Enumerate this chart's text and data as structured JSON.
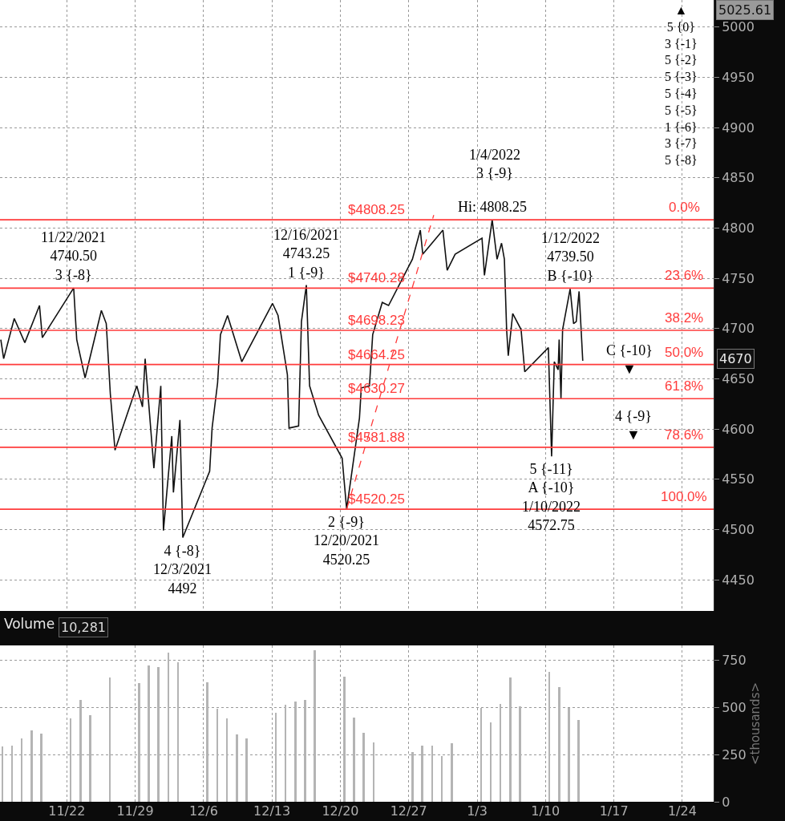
{
  "chart_data": [
    {
      "type": "line",
      "xlim": [
        "2021-11-15T04:00",
        "2022-01-27T05:00"
      ],
      "ylim": [
        4419,
        5027
      ],
      "xticks": [
        {
          "value": "2021-11-22",
          "label": null
        },
        {
          "value": "2021-11-29",
          "label": null
        },
        {
          "value": "2021-12-06",
          "label": null
        },
        {
          "value": "2021-12-13",
          "label": null
        },
        {
          "value": "2021-12-20",
          "label": null
        },
        {
          "value": "2021-12-27",
          "label": null
        },
        {
          "value": "2022-01-03",
          "label": null
        },
        {
          "value": "2022-01-10",
          "label": null
        },
        {
          "value": "2022-01-17",
          "label": null
        },
        {
          "value": "2022-01-24",
          "label": null
        }
      ],
      "yticks": [
        4450,
        4500,
        4550,
        4600,
        4650,
        4700,
        4750,
        4800,
        4850,
        4900,
        4950,
        5000
      ],
      "tick_labels": "y",
      "grid": true,
      "series": [
        {
          "color": "#111111",
          "line_style": "solid",
          "x": [
            "2021-11-15T06:00",
            "2021-11-15T13:00",
            "2021-11-16T15:00",
            "2021-11-17T17:00",
            "2021-11-19T05:00",
            "2021-11-19T12:00",
            "2021-11-22T17:00",
            "2021-11-23T00:30",
            "2021-11-23T21:00",
            "2021-11-25T13:00",
            "2021-11-26T01:00",
            "2021-11-26T11:00",
            "2021-11-26T22:30",
            "2021-11-29T04:00",
            "2021-11-29T18:00",
            "2021-11-30T00:30",
            "2021-11-30T22:00",
            "2021-12-01T15:00",
            "2021-12-01T21:30",
            "2021-12-02T18:00",
            "2021-12-02T22:00",
            "2021-12-03T14:00",
            "2021-12-03T21:00",
            "2021-12-06T15:00",
            "2021-12-06T21:00",
            "2021-12-07T10:30",
            "2021-12-07T17:30",
            "2021-12-08T11:00",
            "2021-12-09T22:00",
            "2021-12-13T01:30",
            "2021-12-13T15:00",
            "2021-12-14T14:00",
            "2021-12-14T18:00",
            "2021-12-15T17:30",
            "2021-12-16T00:30",
            "2021-12-16T12:30",
            "2021-12-16T20:30",
            "2021-12-17T18:30",
            "2021-12-20T04:30",
            "2021-12-20T15:30",
            "2021-12-21T23:00",
            "2021-12-22T03:30",
            "2021-12-22T23:30",
            "2021-12-23T07:30",
            "2021-12-24T07:00",
            "2021-12-24T22:30",
            "2021-12-27T09:00",
            "2021-12-28T04:30",
            "2021-12-28T10:30",
            "2021-12-30T12:00",
            "2021-12-30T22:30",
            "2021-12-31T18:00",
            "2022-01-03T12:00",
            "2022-01-03T18:00",
            "2022-01-04T13:00",
            "2022-01-05T01:00",
            "2022-01-05T12:00",
            "2022-01-05T19:00",
            "2022-01-06T00:30",
            "2022-01-06T04:30",
            "2022-01-06T15:30",
            "2022-01-07T12:00",
            "2022-01-07T21:00",
            "2022-01-10T07:00",
            "2022-01-10T15:00",
            "2022-01-10T21:30",
            "2022-01-11T07:00",
            "2022-01-11T09:30",
            "2022-01-11T14:00",
            "2022-01-11T18:00",
            "2022-01-12T12:30",
            "2022-01-12T21:00",
            "2022-01-13T03:30",
            "2022-01-13T10:30",
            "2022-01-13T15:30",
            "2022-01-13T19:30"
          ],
          "values": [
            4689,
            4670,
            4710,
            4686,
            4723,
            4691,
            4740.5,
            4689,
            4651,
            4718,
            4705,
            4635,
            4579,
            4643,
            4622,
            4670,
            4561,
            4643,
            4499,
            4593,
            4537,
            4609,
            4492,
            4558,
            4601,
            4646,
            4694,
            4713,
            4667,
            4725,
            4713,
            4654,
            4601,
            4603,
            4707,
            4743.25,
            4643,
            4614,
            4571,
            4520.25,
            4611,
            4641,
            4643,
            4694,
            4726,
            4723,
            4769,
            4798,
            4774,
            4798,
            4758,
            4774,
            4790,
            4753,
            4808.25,
            4769,
            4785,
            4769,
            4699,
            4673,
            4715,
            4699,
            4657,
            4681,
            4572.75,
            4667,
            4659,
            4689,
            4630,
            4699,
            4739.5,
            4705,
            4707,
            4737,
            4699,
            4668
          ]
        },
        {
          "type": "line",
          "color": "#ff3b3b",
          "line_style": "dashed",
          "x": [
            "2021-12-20T15:30",
            "2021-12-29T13:30"
          ],
          "values": [
            4520.25,
            4813
          ]
        }
      ],
      "ref_lines": [
        {
          "axis": "y",
          "value": 4808.25,
          "label": "$4808.25",
          "color": "#ff3b3b"
        },
        {
          "axis": "y",
          "value": 4740.28,
          "label": "$4740.28",
          "color": "#ff3b3b"
        },
        {
          "axis": "y",
          "value": 4698.23,
          "label": "$4698.23",
          "color": "#ff3b3b"
        },
        {
          "axis": "y",
          "value": 4664.25,
          "label": "$4664.25",
          "color": "#ff3b3b"
        },
        {
          "axis": "y",
          "value": 4630.27,
          "label": "$4630.27",
          "color": "#ff3b3b"
        },
        {
          "axis": "y",
          "value": 4581.88,
          "label": "$4581.88",
          "color": "#ff3b3b"
        },
        {
          "axis": "y",
          "value": 4520.25,
          "label": "$4520.25",
          "color": "#ff3b3b"
        }
      ],
      "annotations": [
        {
          "text": "11/22/2021\n4740.50\n3 {-8}",
          "x": "2021-11-22T17:00",
          "y": 4740.5
        },
        {
          "text": "4 {-8}\n12/3/2021\n4492",
          "x": "2021-12-03T21:00",
          "y": 4492
        },
        {
          "text": "12/16/2021\n4743.25\n1 {-9}",
          "x": "2021-12-16T12:30",
          "y": 4743.25
        },
        {
          "text": "2 {-9}\n12/20/2021\n4520.25",
          "x": "2021-12-20T15:30",
          "y": 4520.25
        },
        {
          "text": "Hi: 4808.25",
          "x": "2022-01-04T13:00",
          "y": 4808.25
        },
        {
          "text": "5 {-11}\nA {-10}\n1/10/2022\n4572.75",
          "x": "2022-01-10T15:00",
          "y": 4572.75
        },
        {
          "text": "1/12/2022\n4739.50\nB {-10}",
          "x": "2022-01-12T12:30",
          "y": 4739.5
        },
        {
          "text": "0.0%",
          "x": "2022-01-24T05:00",
          "y": 4808.25
        },
        {
          "text": "23.6%",
          "x": "2022-01-24T05:00",
          "y": 4740.28
        },
        {
          "text": "38.2%",
          "x": "2022-01-24T05:00",
          "y": 4698.23
        },
        {
          "text": "50.0%",
          "x": "2022-01-24T05:00",
          "y": 4664.25
        },
        {
          "text": "61.8%",
          "x": "2022-01-24T05:00",
          "y": 4630.27
        },
        {
          "text": "78.6%",
          "x": "2022-01-24T05:00",
          "y": 4581.88
        },
        {
          "text": "100.0%",
          "x": "2022-01-24T05:00",
          "y": 4520.25
        },
        "5025.61",
        "4670",
        "1/4/2022\n3 {-9}",
        "C {-10}\n▼",
        "4 {-9}\n▼",
        "▲\n5 {0}\n3 {-1}\n5 {-2}\n5 {-3}\n5 {-4}\n5 {-5}\n1 {-6}\n3 {-7}\n5 {-8}"
      ]
    },
    {
      "type": "bar",
      "title": "Volume",
      "ylabel": "<thousands>",
      "annotations": [
        "10,281"
      ],
      "grid": true,
      "color": "#b4b4b4",
      "xlim": [
        "2021-11-15T04:00",
        "2022-01-27T05:00"
      ],
      "ylim": [
        0,
        830
      ],
      "yticks": [
        0,
        250,
        500,
        750
      ],
      "xticks": [
        {
          "value": "2021-11-22",
          "label": "11/22"
        },
        {
          "value": "2021-11-29",
          "label": "11/29"
        },
        {
          "value": "2021-12-06",
          "label": "12/6"
        },
        {
          "value": "2021-12-13",
          "label": "12/13"
        },
        {
          "value": "2021-12-20",
          "label": "12/20"
        },
        {
          "value": "2021-12-27",
          "label": "12/27"
        },
        {
          "value": "2022-01-03",
          "label": "1/3"
        },
        {
          "value": "2022-01-10",
          "label": "1/10"
        },
        {
          "value": "2022-01-17",
          "label": "1/17"
        },
        {
          "value": "2022-01-24",
          "label": "1/24"
        }
      ],
      "x": [
        "2021-11-15T09:30",
        "2021-11-16T09:30",
        "2021-11-17T09:30",
        "2021-11-18T09:30",
        "2021-11-19T09:30",
        "2021-11-22T09:30",
        "2021-11-23T09:30",
        "2021-11-24T09:30",
        "2021-11-26T09:30",
        "2021-11-29T09:30",
        "2021-11-30T09:30",
        "2021-12-01T09:30",
        "2021-12-02T09:30",
        "2021-12-03T09:30",
        "2021-12-06T09:30",
        "2021-12-07T09:30",
        "2021-12-08T09:30",
        "2021-12-09T09:30",
        "2021-12-10T09:30",
        "2021-12-13T09:30",
        "2021-12-14T09:30",
        "2021-12-15T09:30",
        "2021-12-16T09:30",
        "2021-12-17T09:30",
        "2021-12-20T09:30",
        "2021-12-21T09:30",
        "2021-12-22T09:30",
        "2021-12-23T09:30",
        "2021-12-27T09:30",
        "2021-12-28T09:30",
        "2021-12-29T09:30",
        "2021-12-30T09:30",
        "2021-12-31T09:30",
        "2022-01-03T09:30",
        "2022-01-04T09:30",
        "2022-01-05T09:30",
        "2022-01-06T09:30",
        "2022-01-07T09:30",
        "2022-01-10T09:30",
        "2022-01-11T09:30",
        "2022-01-12T09:30",
        "2022-01-13T09:30"
      ],
      "values": [
        295,
        298,
        336,
        379,
        363,
        444,
        539,
        458,
        661,
        628,
        723,
        715,
        791,
        742,
        634,
        493,
        444,
        357,
        338,
        471,
        514,
        533,
        542,
        804,
        666,
        447,
        366,
        317,
        263,
        298,
        298,
        244,
        309,
        498,
        420,
        520,
        661,
        506,
        688,
        609,
        498,
        433
      ]
    }
  ]
}
